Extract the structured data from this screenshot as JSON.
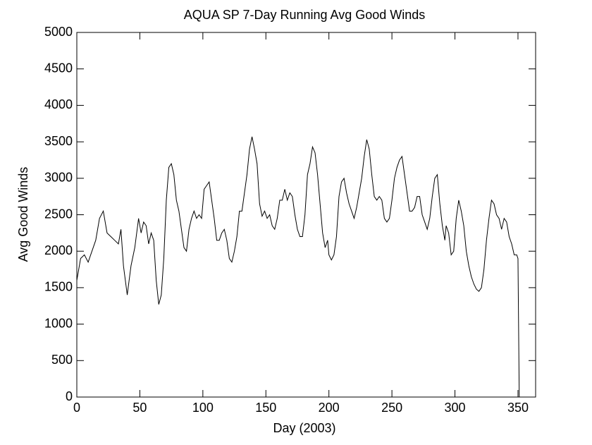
{
  "chart_data": {
    "type": "line",
    "title": "AQUA SP 7-Day Running Avg Good Winds",
    "x_label": "Day (2003)",
    "y_label": "Avg Good Winds",
    "xlim": [
      0,
      364
    ],
    "xticks": [
      0,
      50,
      100,
      150,
      200,
      250,
      300,
      350
    ],
    "ylim": [
      0,
      5000
    ],
    "yticks": [
      0,
      500,
      1000,
      1500,
      2000,
      2500,
      3000,
      3500,
      4000,
      4500,
      5000
    ],
    "x": [
      0,
      3,
      6,
      9,
      12,
      15,
      18,
      21,
      24,
      27,
      30,
      33,
      35,
      37,
      40,
      43,
      46,
      49,
      51,
      53,
      55,
      57,
      59,
      61,
      63,
      65,
      67,
      69,
      71,
      73,
      75,
      77,
      79,
      81,
      83,
      85,
      87,
      89,
      91,
      93,
      95,
      97,
      99,
      101,
      103,
      105,
      107,
      109,
      111,
      113,
      115,
      117,
      119,
      121,
      123,
      125,
      127,
      129,
      131,
      133,
      135,
      137,
      139,
      141,
      143,
      145,
      147,
      149,
      151,
      153,
      155,
      157,
      159,
      161,
      163,
      165,
      167,
      169,
      171,
      173,
      175,
      177,
      179,
      181,
      183,
      185,
      187,
      189,
      191,
      193,
      195,
      197,
      199,
      200,
      202,
      204,
      206,
      208,
      210,
      212,
      214,
      216,
      218,
      220,
      222,
      224,
      226,
      228,
      230,
      232,
      234,
      236,
      238,
      240,
      242,
      244,
      246,
      248,
      250,
      252,
      254,
      256,
      258,
      260,
      262,
      264,
      266,
      268,
      270,
      272,
      274,
      276,
      278,
      280,
      282,
      284,
      286,
      288,
      290,
      292,
      293,
      295,
      297,
      299,
      301,
      303,
      305,
      307,
      309,
      311,
      313,
      315,
      317,
      319,
      321,
      323,
      325,
      327,
      329,
      331,
      333,
      335,
      337,
      339,
      341,
      343,
      345,
      347,
      349,
      350,
      351
    ],
    "series": [
      {
        "name": "Avg Good Winds",
        "color": "#000000",
        "values": [
          1600,
          1900,
          1950,
          1850,
          2000,
          2150,
          2450,
          2550,
          2250,
          2200,
          2150,
          2100,
          2300,
          1800,
          1400,
          1800,
          2050,
          2450,
          2250,
          2400,
          2350,
          2100,
          2250,
          2150,
          1600,
          1270,
          1400,
          1900,
          2700,
          3150,
          3200,
          3050,
          2700,
          2550,
          2300,
          2050,
          2000,
          2300,
          2450,
          2550,
          2450,
          2500,
          2450,
          2850,
          2900,
          2950,
          2700,
          2450,
          2150,
          2150,
          2250,
          2300,
          2150,
          1900,
          1850,
          2000,
          2200,
          2550,
          2550,
          2800,
          3050,
          3400,
          3570,
          3400,
          3200,
          2650,
          2480,
          2550,
          2450,
          2500,
          2350,
          2300,
          2450,
          2700,
          2700,
          2850,
          2700,
          2800,
          2750,
          2500,
          2300,
          2200,
          2200,
          2500,
          3050,
          3200,
          3430,
          3350,
          3050,
          2650,
          2250,
          2050,
          2150,
          1950,
          1880,
          1950,
          2200,
          2750,
          2950,
          3000,
          2800,
          2650,
          2550,
          2450,
          2600,
          2800,
          3000,
          3300,
          3530,
          3400,
          3050,
          2750,
          2700,
          2750,
          2700,
          2450,
          2400,
          2450,
          2700,
          3000,
          3150,
          3250,
          3300,
          3050,
          2800,
          2550,
          2550,
          2600,
          2750,
          2750,
          2500,
          2400,
          2300,
          2450,
          2750,
          3000,
          3050,
          2650,
          2350,
          2150,
          2350,
          2250,
          1950,
          2000,
          2450,
          2700,
          2550,
          2350,
          2000,
          1800,
          1650,
          1550,
          1480,
          1450,
          1500,
          1750,
          2150,
          2450,
          2700,
          2650,
          2500,
          2450,
          2300,
          2450,
          2400,
          2200,
          2100,
          1950,
          1950,
          1900,
          0
        ]
      }
    ]
  }
}
